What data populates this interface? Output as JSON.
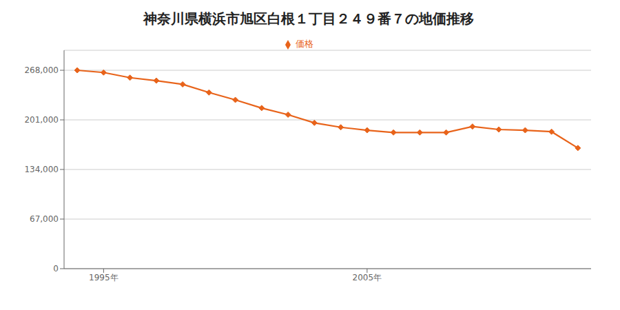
{
  "chart_data": {
    "type": "line",
    "title": "神奈川県横浜市旭区白根１丁目２４９番７の地価推移",
    "x": [
      1994,
      1995,
      1996,
      1997,
      1998,
      1999,
      2000,
      2001,
      2002,
      2003,
      2004,
      2005,
      2006,
      2007,
      2008,
      2009,
      2010,
      2011,
      2012,
      2013
    ],
    "series": [
      {
        "name": "価格",
        "color": "#e8631a",
        "marker": "diamond",
        "values": [
          268000,
          265000,
          258000,
          254000,
          249000,
          238000,
          228000,
          217000,
          208000,
          197000,
          191000,
          187000,
          184000,
          184000,
          184000,
          192000,
          188000,
          187000,
          185000,
          163000
        ]
      }
    ],
    "xlim": [
      1993.5,
      2013.5
    ],
    "xticks": [
      {
        "value": 1995,
        "label": "1995年"
      },
      {
        "value": 2005,
        "label": "2005年"
      }
    ],
    "ylim": [
      0,
      295000
    ],
    "yticks": [
      0,
      {
        "value": 67000,
        "label": "67,000"
      },
      {
        "value": 134000,
        "label": "134,000"
      },
      {
        "value": 201000,
        "label": "201,000"
      },
      {
        "value": 268000,
        "label": "268,000"
      }
    ],
    "grid": true,
    "legend": "top"
  }
}
